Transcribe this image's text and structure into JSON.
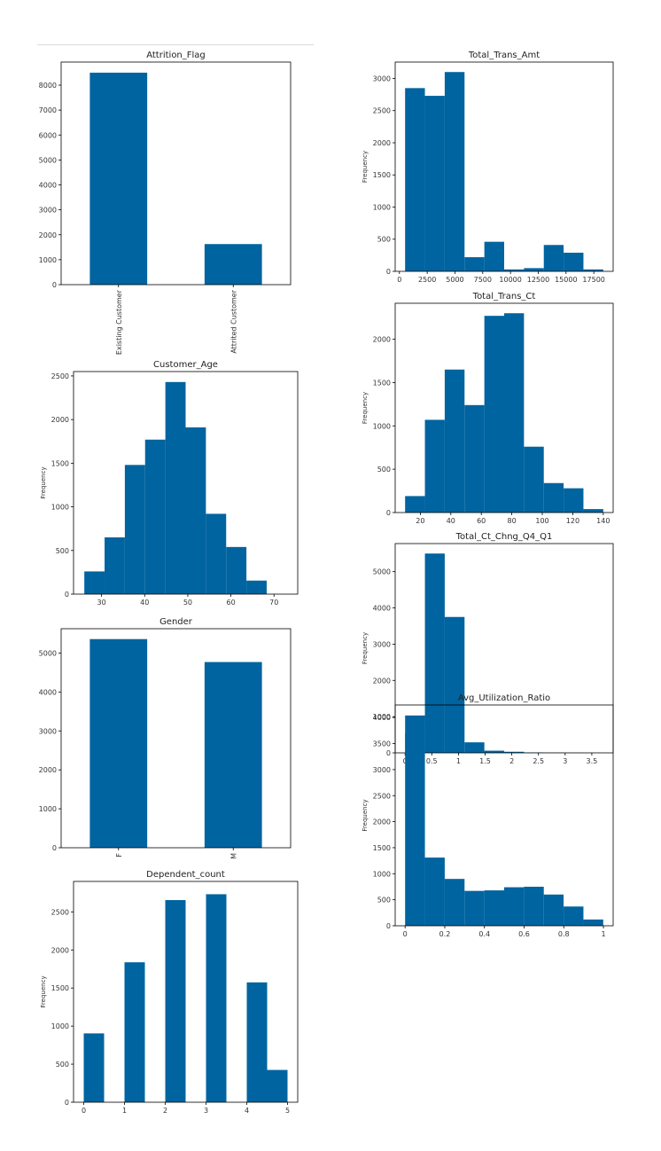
{
  "chart_data": [
    {
      "id": "attrition",
      "type": "bar",
      "title": "Attrition_Flag",
      "xlabel": "",
      "ylabel": "",
      "categories": [
        "Existing Customer",
        "Attrited Customer"
      ],
      "values": [
        8500,
        1627
      ],
      "ylim": [
        0,
        8925
      ],
      "yticks": [
        0,
        1000,
        2000,
        3000,
        4000,
        5000,
        6000,
        7000,
        8000
      ],
      "xlabels_rotated": true,
      "color": "#0064a0"
    },
    {
      "id": "age",
      "type": "histogram",
      "title": "Customer_Age",
      "xlabel": "",
      "ylabel": "Frequency",
      "bin_edges": [
        26,
        30.7,
        35.4,
        40.1,
        44.8,
        49.5,
        54.2,
        58.9,
        63.6,
        68.3,
        73
      ],
      "values": [
        260,
        650,
        1480,
        1770,
        2430,
        1910,
        920,
        540,
        155,
        0
      ],
      "xlim": [
        23.5,
        75.5
      ],
      "xticks": [
        30,
        40,
        50,
        60,
        70
      ],
      "ylim": [
        0,
        2550
      ],
      "yticks": [
        0,
        500,
        1000,
        1500,
        2000,
        2500
      ],
      "color": "#0064a0"
    },
    {
      "id": "gender",
      "type": "bar",
      "title": "Gender",
      "xlabel": "",
      "ylabel": "",
      "categories": [
        "F",
        "M"
      ],
      "values": [
        5358,
        4769
      ],
      "ylim": [
        0,
        5625
      ],
      "yticks": [
        0,
        1000,
        2000,
        3000,
        4000,
        5000
      ],
      "xlabels_rotated": true,
      "color": "#0064a0"
    },
    {
      "id": "dependent",
      "type": "histogram",
      "title": "Dependent_count",
      "xlabel": "",
      "ylabel": "Frequency",
      "bin_edges": [
        0,
        0.5,
        1,
        1.5,
        2,
        2.5,
        3,
        3.5,
        4,
        4.5,
        5
      ],
      "values": [
        904,
        0,
        1838,
        0,
        2655,
        0,
        2732,
        0,
        1574,
        424
      ],
      "xlim": [
        -0.25,
        5.25
      ],
      "xticks": [
        0,
        1,
        2,
        3,
        4,
        5
      ],
      "ylim": [
        0,
        2900
      ],
      "yticks": [
        0,
        500,
        1000,
        1500,
        2000,
        2500
      ],
      "color": "#0064a0"
    },
    {
      "id": "trans-amt",
      "type": "histogram",
      "title": "Total_Trans_Amt",
      "xlabel": "",
      "ylabel": "Frequency",
      "bin_edges": [
        510,
        2294,
        4078,
        5862,
        7646,
        9430,
        11214,
        12998,
        14782,
        16566,
        18350
      ],
      "values": [
        2850,
        2730,
        3100,
        220,
        460,
        30,
        50,
        410,
        290,
        30
      ],
      "xlim": [
        -382,
        19242
      ],
      "xticks": [
        0,
        2500,
        5000,
        7500,
        10000,
        12500,
        15000,
        17500
      ],
      "ylim": [
        0,
        3255
      ],
      "yticks": [
        0,
        500,
        1000,
        1500,
        2000,
        2500,
        3000
      ],
      "color": "#0064a0"
    },
    {
      "id": "trans-ct",
      "type": "histogram",
      "title": "Total_Trans_Ct",
      "xlabel": "",
      "ylabel": "Frequency",
      "bin_edges": [
        10,
        23,
        36,
        49,
        62,
        75,
        88,
        101,
        114,
        127,
        140
      ],
      "values": [
        190,
        1070,
        1650,
        1240,
        2270,
        2300,
        760,
        340,
        280,
        40
      ],
      "xlim": [
        3.5,
        146.5
      ],
      "xticks": [
        20,
        40,
        60,
        80,
        100,
        120,
        140
      ],
      "ylim": [
        0,
        2415
      ],
      "yticks": [
        0,
        500,
        1000,
        1500,
        2000
      ],
      "color": "#0064a0"
    },
    {
      "id": "ct-chng",
      "type": "histogram",
      "title": "Total_Ct_Chng_Q4_Q1",
      "xlabel": "",
      "ylabel": "Frequency",
      "bin_edges": [
        0,
        0.3714,
        0.7428,
        1.1142,
        1.4856,
        1.857,
        2.2284,
        2.5998,
        2.9712,
        3.3426,
        3.714
      ],
      "values": [
        540,
        5500,
        3750,
        290,
        60,
        30,
        10,
        5,
        2,
        1
      ],
      "xlim": [
        -0.186,
        3.9
      ],
      "xticks": [
        0.0,
        0.5,
        1.0,
        1.5,
        2.0,
        2.5,
        3.0,
        3.5
      ],
      "ylim": [
        0,
        5775
      ],
      "yticks": [
        0,
        1000,
        2000,
        3000,
        4000,
        5000
      ],
      "color": "#0064a0"
    },
    {
      "id": "util",
      "type": "histogram",
      "title": "Avg_Utilization_Ratio",
      "xlabel": "",
      "ylabel": "Frequency",
      "bin_edges": [
        0,
        0.0999,
        0.1998,
        0.2997,
        0.3996,
        0.4995,
        0.5994,
        0.6993,
        0.7992,
        0.8991,
        0.999
      ],
      "values": [
        4040,
        1310,
        900,
        670,
        680,
        740,
        750,
        600,
        370,
        120
      ],
      "xlim": [
        -0.05,
        1.049
      ],
      "xticks": [
        0.0,
        0.2,
        0.4,
        0.6,
        0.8,
        1.0
      ],
      "ylim": [
        0,
        4242
      ],
      "yticks": [
        0,
        500,
        1000,
        1500,
        2000,
        2500,
        3000,
        3500,
        4000
      ],
      "color": "#0064a0"
    }
  ]
}
